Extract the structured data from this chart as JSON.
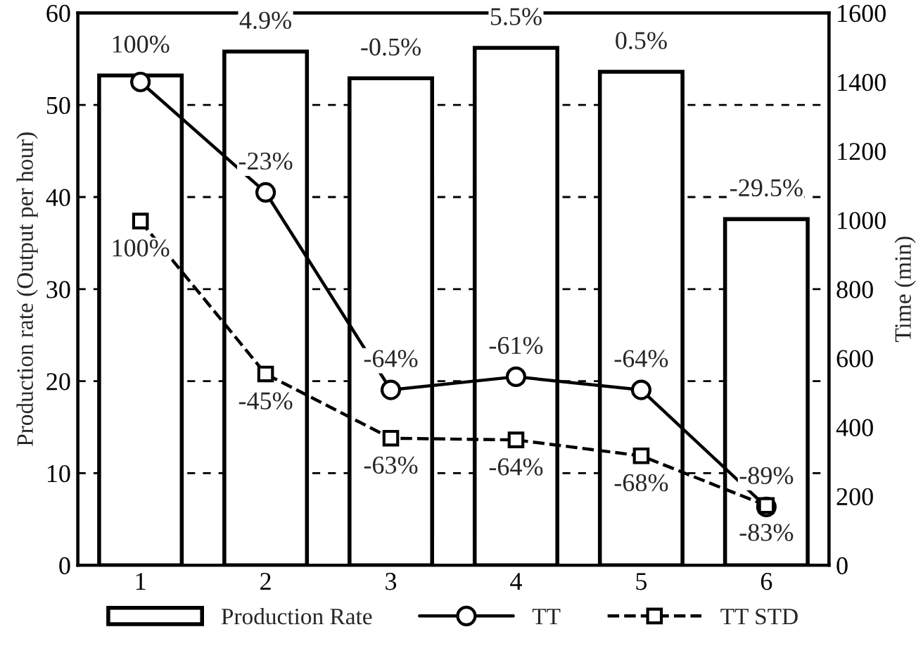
{
  "chart_data": {
    "type": "bar",
    "categories": [
      "1",
      "2",
      "3",
      "4",
      "5",
      "6"
    ],
    "ylabel": "Production rate (Output per hour)",
    "y2label": "Time (min)",
    "ylim": [
      0,
      60
    ],
    "yticks": [
      0,
      10,
      20,
      30,
      40,
      50,
      60
    ],
    "y2lim": [
      0,
      1600
    ],
    "y2ticks": [
      0,
      200,
      400,
      600,
      800,
      1000,
      1200,
      1400,
      1600
    ],
    "grid": "y",
    "legend": "bottom",
    "series": [
      {
        "name": "Production Rate",
        "type": "bar",
        "color": "#ffffff",
        "values": [
          53.2,
          55.8,
          52.9,
          56.2,
          53.6,
          37.6
        ]
      },
      {
        "name": "TT",
        "type": "line",
        "axis": "y2",
        "color": "#000000",
        "marker": "circle",
        "line_style": "solid",
        "values": [
          1400,
          1080,
          508,
          546,
          508,
          169
        ]
      },
      {
        "name": "TT STD",
        "type": "line",
        "axis": "y2",
        "color": "#000000",
        "marker": "square",
        "line_style": "dashed",
        "values": [
          997,
          554,
          368,
          363,
          317,
          173
        ]
      }
    ],
    "annotations": [
      {
        "text": "100%",
        "x": "1",
        "y": 53.2
      },
      {
        "text": "4.9%",
        "x": "2",
        "y": 55.8
      },
      {
        "text": "-0.5%",
        "x": "3",
        "y": 52.9
      },
      {
        "text": "5.5%",
        "x": "4",
        "y": 56.2
      },
      {
        "text": "0.5%",
        "x": "5",
        "y": 53.6
      },
      {
        "text": "-29.5%",
        "x": "6",
        "y": 37.6
      },
      {
        "text": "-23%",
        "x": "2",
        "y": 40.5
      },
      {
        "text": "-64%",
        "x": "3",
        "y": 19.05
      },
      {
        "text": "-61%",
        "x": "4",
        "y": 20.48
      },
      {
        "text": "-64%",
        "x": "5",
        "y": 19.05
      },
      {
        "text": "-89%",
        "x": "6",
        "y": 6.34
      },
      {
        "text": "100%",
        "x": "1",
        "y": 37.39
      },
      {
        "text": "-45%",
        "x": "2",
        "y": 20.78
      },
      {
        "text": "-63%",
        "x": "3",
        "y": 13.8
      },
      {
        "text": "-64%",
        "x": "4",
        "y": 13.61
      },
      {
        "text": "-68%",
        "x": "5",
        "y": 11.89
      },
      {
        "text": "-83%",
        "x": "6",
        "y": 6.49
      }
    ]
  }
}
